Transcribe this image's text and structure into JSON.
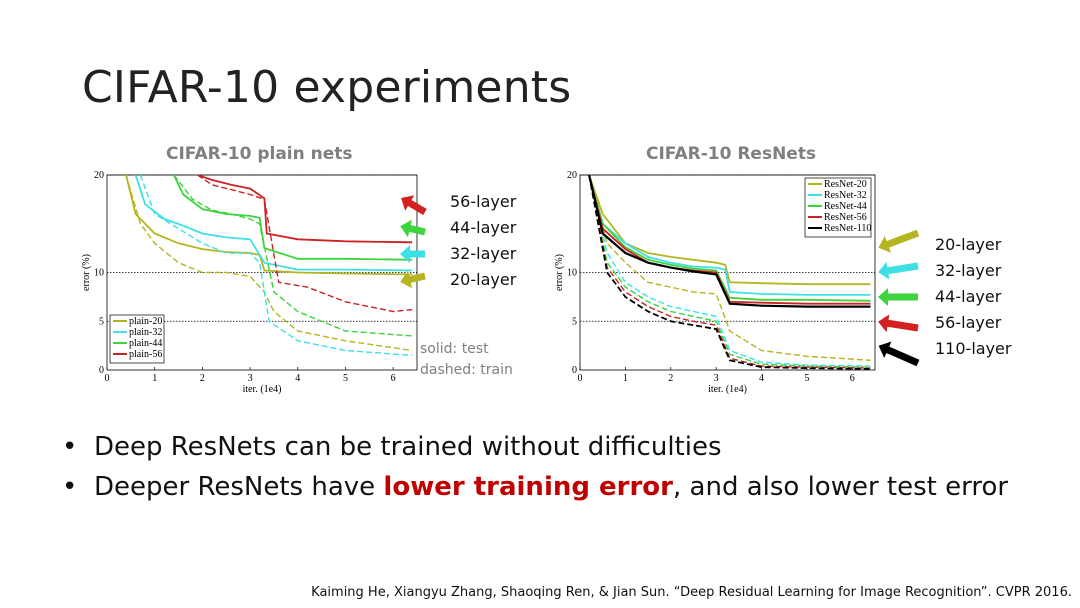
{
  "slide": {
    "title": "CIFAR-10 experiments",
    "note_solid": "solid: test",
    "note_dashed": "dashed: train",
    "bullets": {
      "b1": "Deep ResNets can be trained without difficulties",
      "b2_pre": "Deeper ResNets have ",
      "b2_highlight": "lower training error",
      "b2_post": ", and also lower test error"
    },
    "citation": "Kaiming He, Xiangyu Zhang, Shaoqing Ren, & Jian Sun. “Deep Residual Learning for Image Recognition”. CVPR 2016.",
    "highlight_color": "#c00000"
  },
  "chart_data": [
    {
      "type": "line",
      "title": "CIFAR-10 plain nets",
      "xlabel": "iter. (1e4)",
      "ylabel": "error (%)",
      "xlim": [
        0,
        6.5
      ],
      "ylim": [
        0,
        20
      ],
      "xticks": [
        0,
        1,
        2,
        3,
        4,
        5,
        6
      ],
      "yticks": [
        0,
        5,
        10,
        20
      ],
      "gridlines_y": [
        5,
        10,
        20
      ],
      "legend_position": "bottom-left",
      "series": [
        {
          "name": "plain-20",
          "color": "#b5b521",
          "test": [
            [
              0.4,
              20
            ],
            [
              0.6,
              16
            ],
            [
              1,
              14
            ],
            [
              1.5,
              13
            ],
            [
              2,
              12.4
            ],
            [
              2.5,
              12.1
            ],
            [
              3,
              12
            ],
            [
              3.2,
              11.8
            ],
            [
              3.3,
              10.2
            ],
            [
              4,
              10
            ],
            [
              5,
              9.9
            ],
            [
              6.4,
              9.8
            ]
          ],
          "train": [
            [
              0.4,
              20
            ],
            [
              0.7,
              15
            ],
            [
              1,
              13
            ],
            [
              1.5,
              11
            ],
            [
              2,
              10
            ],
            [
              2.5,
              10
            ],
            [
              3,
              9.6
            ],
            [
              3.3,
              8
            ],
            [
              3.5,
              6
            ],
            [
              4,
              4
            ],
            [
              5,
              3
            ],
            [
              6.4,
              2
            ]
          ]
        },
        {
          "name": "plain-32",
          "color": "#3ee0e6",
          "test": [
            [
              0.6,
              20
            ],
            [
              0.8,
              17
            ],
            [
              1.2,
              15.5
            ],
            [
              1.6,
              14.8
            ],
            [
              2,
              14
            ],
            [
              2.5,
              13.6
            ],
            [
              3,
              13.4
            ],
            [
              3.3,
              11
            ],
            [
              4,
              10.3
            ],
            [
              5,
              10.3
            ],
            [
              6.4,
              10.2
            ]
          ],
          "train": [
            [
              0.7,
              20
            ],
            [
              1,
              16
            ],
            [
              1.5,
              14.5
            ],
            [
              2,
              13
            ],
            [
              2.5,
              12
            ],
            [
              3,
              12
            ],
            [
              3.2,
              11
            ],
            [
              3.4,
              5
            ],
            [
              4,
              3
            ],
            [
              5,
              2
            ],
            [
              6.4,
              1.5
            ]
          ]
        },
        {
          "name": "plain-44",
          "color": "#3dd43d",
          "test": [
            [
              1.4,
              20
            ],
            [
              1.6,
              18
            ],
            [
              2,
              16.5
            ],
            [
              2.5,
              16
            ],
            [
              3,
              15.8
            ],
            [
              3.2,
              15.6
            ],
            [
              3.3,
              12.5
            ],
            [
              4,
              11.4
            ],
            [
              5,
              11.4
            ],
            [
              6.4,
              11.3
            ]
          ],
          "train": [
            [
              1.4,
              20
            ],
            [
              1.8,
              17.5
            ],
            [
              2.2,
              16.4
            ],
            [
              2.6,
              16
            ],
            [
              3,
              15.5
            ],
            [
              3.2,
              15
            ],
            [
              3.5,
              8
            ],
            [
              4,
              6
            ],
            [
              5,
              4
            ],
            [
              6.4,
              3.5
            ]
          ]
        },
        {
          "name": "plain-56",
          "color": "#cc2222",
          "test": [
            [
              1.9,
              20
            ],
            [
              2.2,
              19.5
            ],
            [
              2.6,
              19
            ],
            [
              3,
              18.6
            ],
            [
              3.3,
              17.6
            ],
            [
              3.35,
              14
            ],
            [
              4,
              13.4
            ],
            [
              5,
              13.2
            ],
            [
              6.4,
              13.1
            ]
          ],
          "train": [
            [
              1.9,
              20
            ],
            [
              2.2,
              19
            ],
            [
              2.6,
              18.5
            ],
            [
              3,
              18
            ],
            [
              3.3,
              17.5
            ],
            [
              3.6,
              9
            ],
            [
              4.2,
              8.5
            ],
            [
              5,
              7
            ],
            [
              6,
              6
            ],
            [
              6.4,
              6.2
            ]
          ]
        }
      ],
      "annotations": [
        {
          "label": "56-layer",
          "color": "#d42020"
        },
        {
          "label": "44-layer",
          "color": "#3dd43d"
        },
        {
          "label": "32-layer",
          "color": "#3ee0e6"
        },
        {
          "label": "20-layer",
          "color": "#b5b521"
        }
      ]
    },
    {
      "type": "line",
      "title": "CIFAR-10 ResNets",
      "xlabel": "iter. (1e4)",
      "ylabel": "error (%)",
      "xlim": [
        0,
        6.5
      ],
      "ylim": [
        0,
        20
      ],
      "xticks": [
        0,
        1,
        2,
        3,
        4,
        5,
        6
      ],
      "yticks": [
        0,
        5,
        10,
        20
      ],
      "gridlines_y": [
        5,
        10,
        20
      ],
      "legend_position": "top-right",
      "series": [
        {
          "name": "ResNet-20",
          "color": "#b5b521",
          "test": [
            [
              0.2,
              20
            ],
            [
              0.5,
              16
            ],
            [
              1,
              13
            ],
            [
              1.5,
              12
            ],
            [
              2,
              11.6
            ],
            [
              2.5,
              11.3
            ],
            [
              3,
              11
            ],
            [
              3.2,
              10.8
            ],
            [
              3.3,
              9
            ],
            [
              4,
              8.9
            ],
            [
              5,
              8.8
            ],
            [
              6.4,
              8.8
            ]
          ],
          "train": [
            [
              0.2,
              20
            ],
            [
              0.6,
              13
            ],
            [
              1,
              11
            ],
            [
              1.5,
              9
            ],
            [
              2,
              8.5
            ],
            [
              2.5,
              8
            ],
            [
              3,
              7.8
            ],
            [
              3.3,
              4
            ],
            [
              4,
              2
            ],
            [
              5,
              1.4
            ],
            [
              6.4,
              1
            ]
          ]
        },
        {
          "name": "ResNet-32",
          "color": "#3ee0e6",
          "test": [
            [
              0.2,
              20
            ],
            [
              0.5,
              15
            ],
            [
              1,
              13
            ],
            [
              1.5,
              11.6
            ],
            [
              2,
              11
            ],
            [
              2.5,
              10.6
            ],
            [
              3,
              10.5
            ],
            [
              3.2,
              10.3
            ],
            [
              3.3,
              8
            ],
            [
              4,
              7.8
            ],
            [
              5,
              7.7
            ],
            [
              6.4,
              7.7
            ]
          ],
          "train": [
            [
              0.2,
              20
            ],
            [
              0.6,
              12
            ],
            [
              1,
              9
            ],
            [
              1.5,
              7.5
            ],
            [
              2,
              6.5
            ],
            [
              2.5,
              6
            ],
            [
              3,
              5.5
            ],
            [
              3.3,
              2
            ],
            [
              4,
              0.8
            ],
            [
              5,
              0.5
            ],
            [
              6.4,
              0.4
            ]
          ]
        },
        {
          "name": "ResNet-44",
          "color": "#3dd43d",
          "test": [
            [
              0.2,
              20
            ],
            [
              0.5,
              15
            ],
            [
              1,
              12.6
            ],
            [
              1.5,
              11.3
            ],
            [
              2,
              10.8
            ],
            [
              2.5,
              10.4
            ],
            [
              3,
              10.2
            ],
            [
              3.3,
              7.4
            ],
            [
              4,
              7.2
            ],
            [
              5,
              7.2
            ],
            [
              6.4,
              7.1
            ]
          ],
          "train": [
            [
              0.2,
              20
            ],
            [
              0.6,
              11
            ],
            [
              1,
              8.5
            ],
            [
              1.5,
              7
            ],
            [
              2,
              6
            ],
            [
              2.5,
              5.5
            ],
            [
              3,
              5
            ],
            [
              3.3,
              1.6
            ],
            [
              4,
              0.6
            ],
            [
              5,
              0.4
            ],
            [
              6.4,
              0.3
            ]
          ]
        },
        {
          "name": "ResNet-56",
          "color": "#cc2222",
          "test": [
            [
              0.2,
              20
            ],
            [
              0.5,
              14.5
            ],
            [
              1,
              12.4
            ],
            [
              1.5,
              11
            ],
            [
              2,
              10.5
            ],
            [
              2.5,
              10.2
            ],
            [
              3,
              10
            ],
            [
              3.3,
              7
            ],
            [
              4,
              6.9
            ],
            [
              5,
              6.8
            ],
            [
              6.4,
              6.8
            ]
          ],
          "train": [
            [
              0.2,
              20
            ],
            [
              0.6,
              10.5
            ],
            [
              1,
              8
            ],
            [
              1.5,
              6.5
            ],
            [
              2,
              5.5
            ],
            [
              2.5,
              5
            ],
            [
              3,
              4.6
            ],
            [
              3.3,
              1.2
            ],
            [
              4,
              0.4
            ],
            [
              5,
              0.3
            ],
            [
              6.4,
              0.2
            ]
          ]
        },
        {
          "name": "ResNet-110",
          "color": "#000000",
          "test": [
            [
              0.2,
              20
            ],
            [
              0.5,
              14
            ],
            [
              1,
              12
            ],
            [
              1.5,
              11
            ],
            [
              2,
              10.5
            ],
            [
              2.5,
              10.1
            ],
            [
              3,
              9.8
            ],
            [
              3.3,
              6.8
            ],
            [
              4,
              6.6
            ],
            [
              5,
              6.5
            ],
            [
              6.4,
              6.5
            ]
          ],
          "train": [
            [
              0.2,
              20
            ],
            [
              0.6,
              10
            ],
            [
              1,
              7.5
            ],
            [
              1.5,
              6
            ],
            [
              2,
              5
            ],
            [
              2.5,
              4.6
            ],
            [
              3,
              4.2
            ],
            [
              3.3,
              1
            ],
            [
              4,
              0.3
            ],
            [
              5,
              0.2
            ],
            [
              6.4,
              0.1
            ]
          ]
        }
      ],
      "annotations": [
        {
          "label": "20-layer",
          "color": "#b5b521"
        },
        {
          "label": "32-layer",
          "color": "#3ee0e6"
        },
        {
          "label": "44-layer",
          "color": "#3dd43d"
        },
        {
          "label": "56-layer",
          "color": "#d42020"
        },
        {
          "label": "110-layer",
          "color": "#000000"
        }
      ]
    }
  ]
}
